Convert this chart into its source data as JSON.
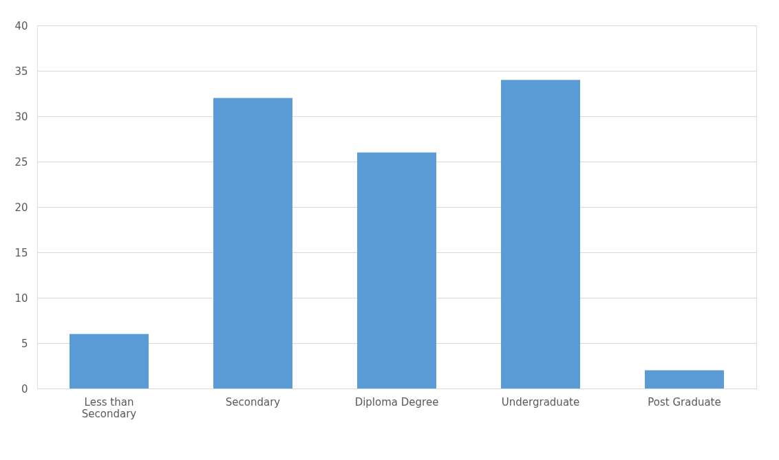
{
  "chart_data": {
    "type": "bar",
    "categories": [
      "Less than Secondary",
      "Secondary",
      "Diploma Degree",
      "Undergraduate",
      "Post Graduate"
    ],
    "values": [
      6,
      32,
      26,
      34,
      2
    ],
    "color": "#5b9bd5",
    "ylim": [
      0,
      40
    ],
    "yticks": [
      0,
      5,
      10,
      15,
      20,
      25,
      30,
      35,
      40
    ],
    "grid": "y"
  }
}
